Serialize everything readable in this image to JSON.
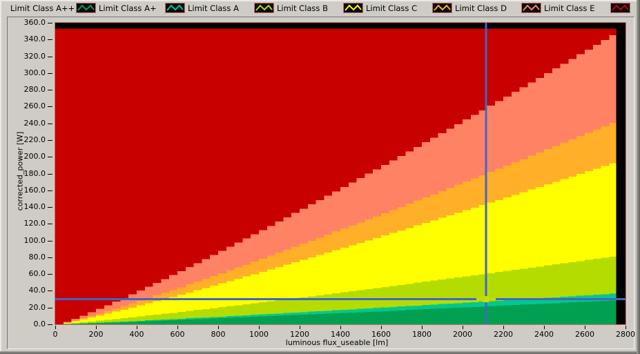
{
  "legend": {
    "icon_bg": "#0A0A0A",
    "icon_border": "#C87070",
    "items": [
      {
        "label": "Limit Class A++",
        "icon_visible": false,
        "color": ""
      },
      {
        "label": "Limit Class A+",
        "icon_visible": true,
        "color": "#00A050"
      },
      {
        "label": "Limit Class A",
        "icon_visible": true,
        "color": "#00C88E"
      },
      {
        "label": "Limit Class B",
        "icon_visible": true,
        "color": "#B4DC00"
      },
      {
        "label": "Limit Class C",
        "icon_visible": true,
        "color": "#FFFF00"
      },
      {
        "label": "Limit Class D",
        "icon_visible": true,
        "color": "#FFAF28"
      },
      {
        "label": "Limit Class E",
        "icon_visible": true,
        "color": "#FF8264"
      },
      {
        "label": "",
        "icon_visible": true,
        "color": "#C80000"
      }
    ]
  },
  "chart_data": {
    "type": "area",
    "title": "",
    "xlabel": "luminous flux_useable [lm]",
    "ylabel": "corrected_power [W]",
    "xlim": [
      0,
      2800
    ],
    "ylim": [
      0,
      360
    ],
    "x_tick_step": 200,
    "y_tick_step": 20,
    "y_tick_decimals": 1,
    "grid": false,
    "legend_position": "top",
    "plot_background": "#000000",
    "frame_color": "#C87070",
    "data_x_max_lm": 2755,
    "curve_exponent": 1.12,
    "curve_step_lm": 40,
    "power_cap_w": 353,
    "regions_bottom_to_top": [
      {
        "class": "Limit Class A+ / A++",
        "color": "#00A050",
        "upper_boundary_w_at_2755lm": 29
      },
      {
        "class": "Limit Class A",
        "color": "#00C88E",
        "upper_boundary_w_at_2755lm": 37
      },
      {
        "class": "Limit Class B",
        "color": "#B4DC00",
        "upper_boundary_w_at_2755lm": 82
      },
      {
        "class": "Limit Class C",
        "color": "#FFFF00",
        "upper_boundary_w_at_2755lm": 195
      },
      {
        "class": "Limit Class D",
        "color": "#FFAF28",
        "upper_boundary_w_at_2755lm": 244
      },
      {
        "class": "Limit Class E",
        "color": "#FF8264",
        "upper_boundary_w_at_2755lm": 350
      },
      {
        "class": "above Limit Class E",
        "color": "#C80000",
        "upper_boundary_w_at_2755lm": 353,
        "flat_top_cap": true
      }
    ],
    "cursor": {
      "x_lm": 2115,
      "y_w": 30,
      "line_color": "#4165C8",
      "marker_color": "#C8DC00"
    }
  },
  "colors": {
    "window_bg": "#CFCCC5",
    "text": "#000000"
  }
}
